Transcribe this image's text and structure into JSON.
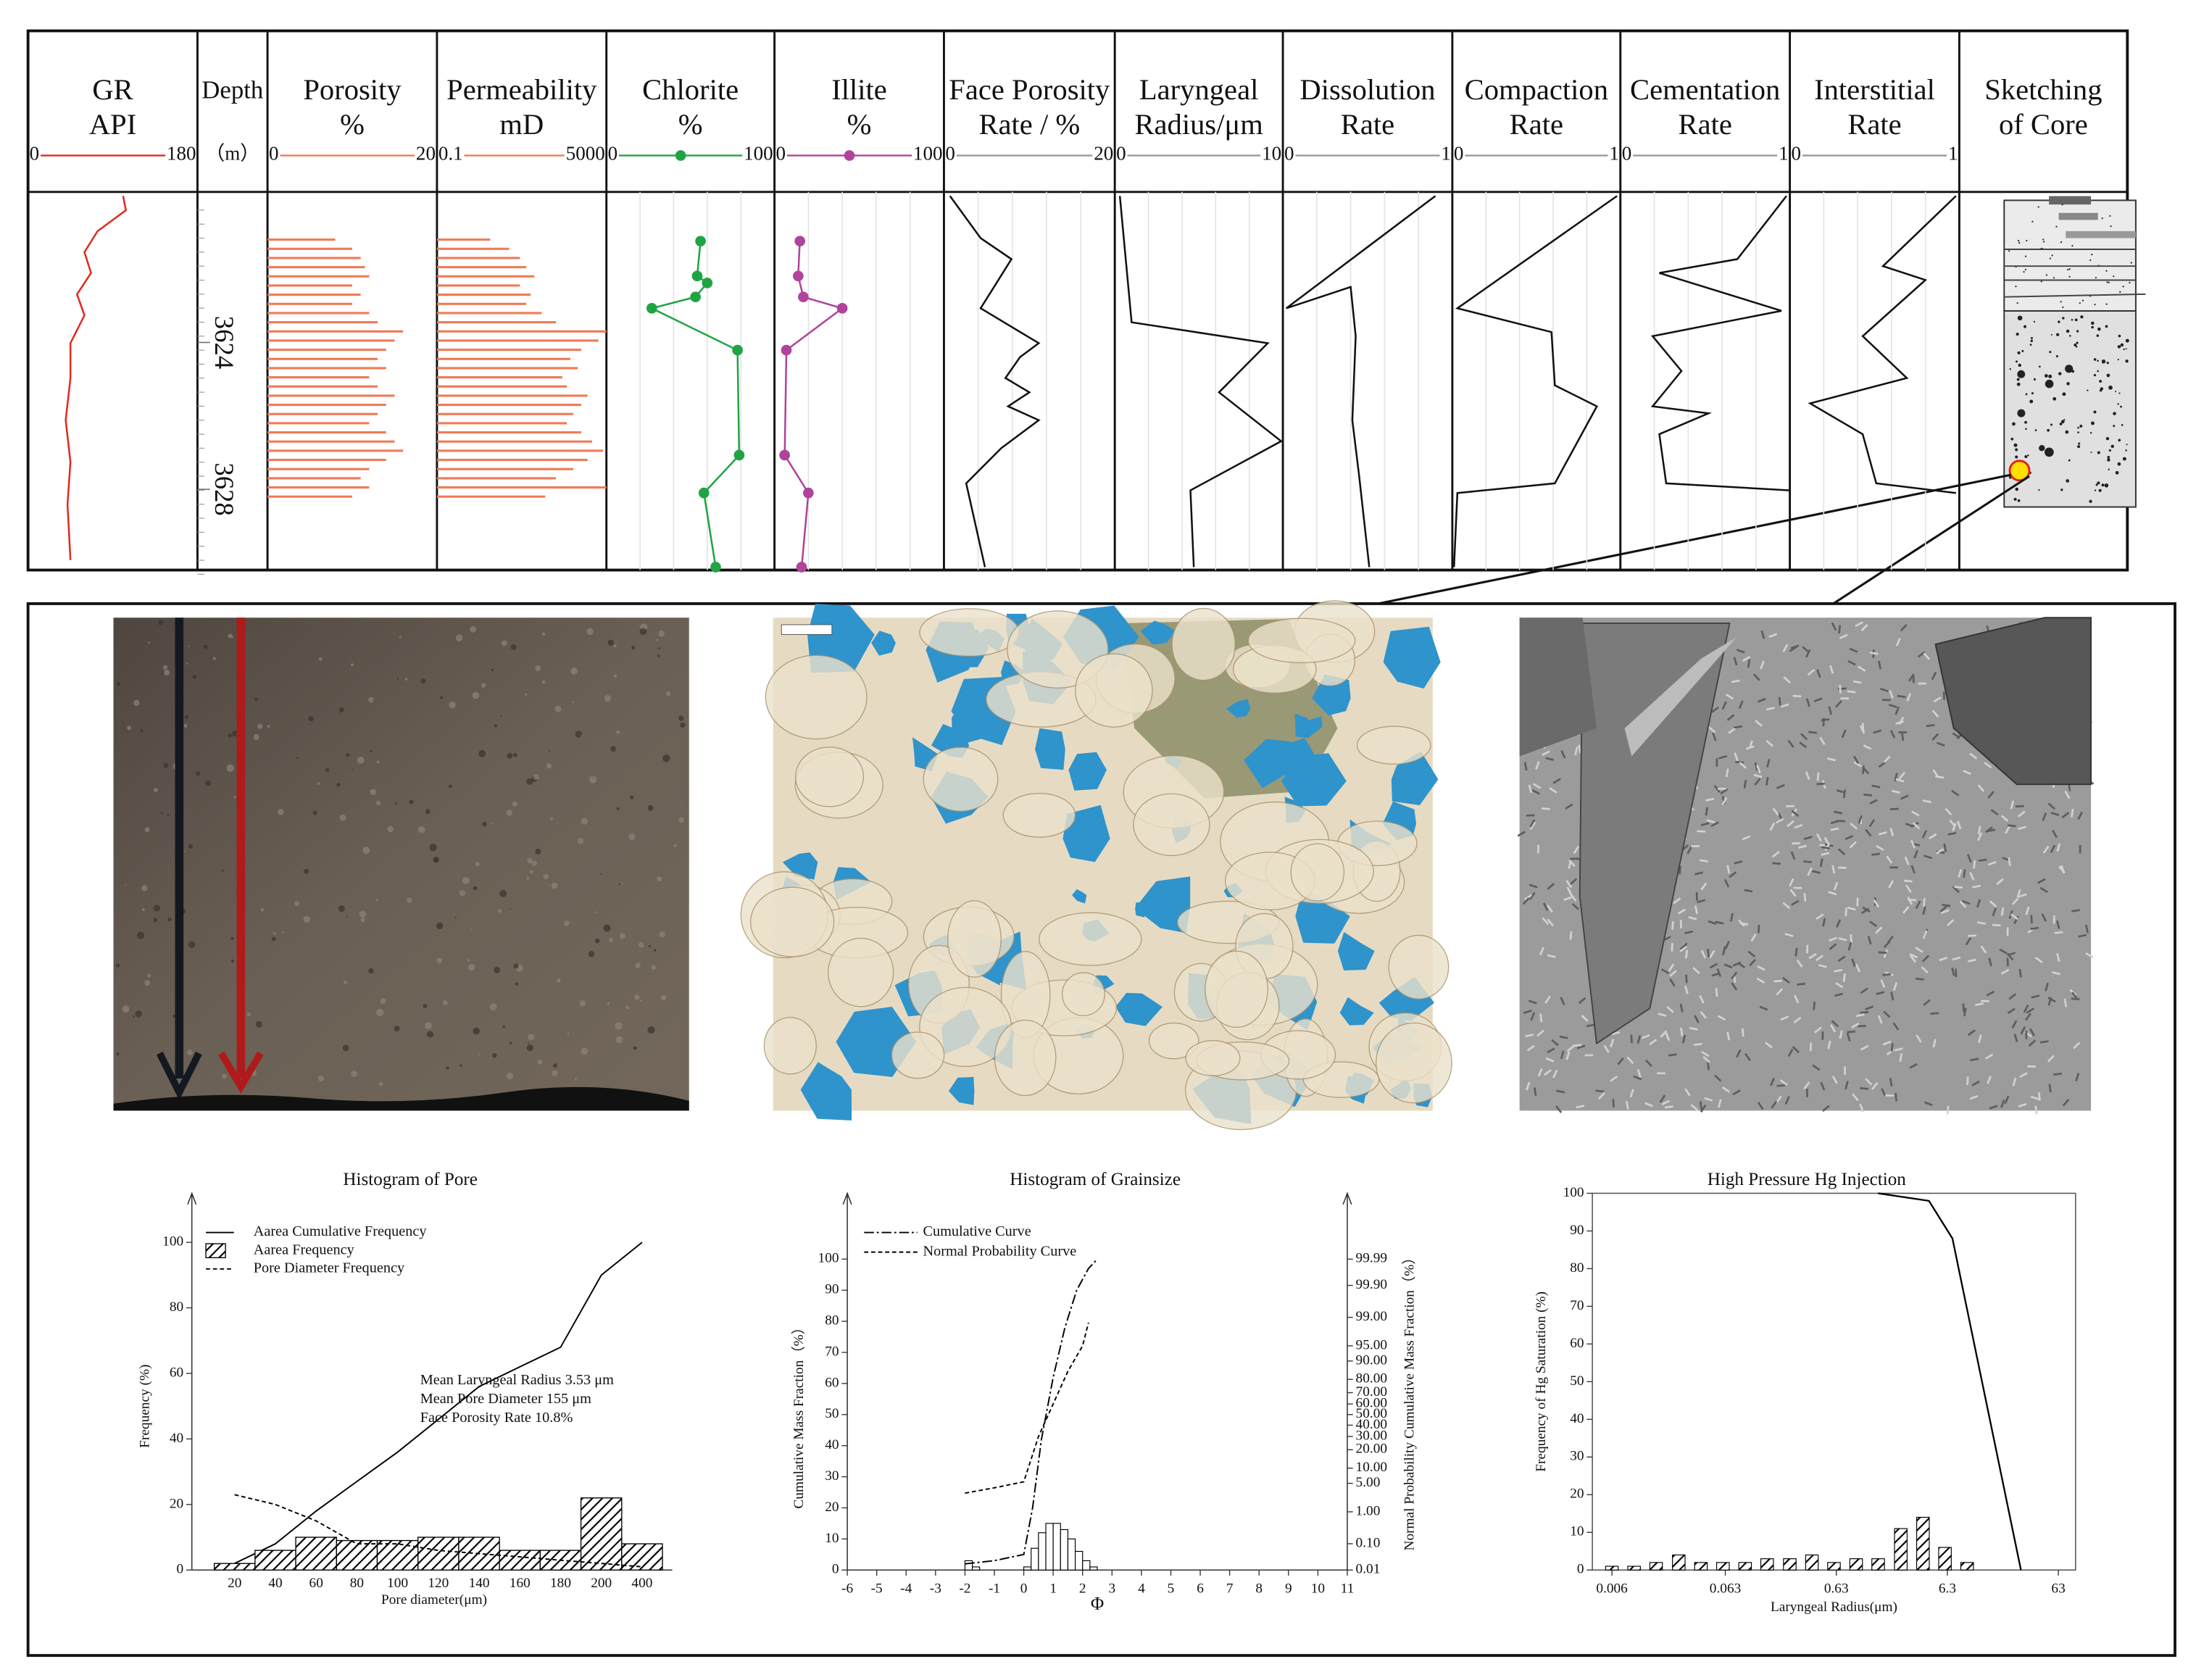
{
  "log_panel": {
    "depth_lim": [
      3619.9,
      3630.2
    ],
    "depth_ticks": [
      3624,
      3628
    ],
    "columns": [
      {
        "title": [
          "GR",
          "API"
        ],
        "scale": [
          0,
          180
        ],
        "color": "#e02a1e",
        "kind": "line",
        "depth": [
          3620.01,
          3620.4,
          3620.97,
          3621.54,
          3622.11,
          3622.69,
          3623.26,
          3624.02,
          3624.97,
          3626.12,
          3627.26,
          3628.41,
          3629.93
        ],
        "values": [
          101,
          104,
          74,
          60,
          67,
          52,
          60,
          45,
          45,
          40,
          45,
          42,
          45
        ]
      },
      {
        "title": [
          "Depth"
        ],
        "unit": "（m）"
      },
      {
        "title": [
          "Porosity",
          "%"
        ],
        "scale": [
          0,
          20
        ],
        "color": "#f07a55",
        "kind": "bars",
        "depth": [
          3621.2,
          3621.45,
          3621.7,
          3621.95,
          3622.2,
          3622.45,
          3622.7,
          3622.95,
          3623.2,
          3623.45,
          3623.7,
          3623.95,
          3624.2,
          3624.45,
          3624.7,
          3624.95,
          3625.2,
          3625.45,
          3625.7,
          3625.95,
          3626.2,
          3626.45,
          3626.7,
          3626.95,
          3627.2,
          3627.45,
          3627.7,
          3627.95,
          3628.2
        ],
        "values": [
          8,
          10,
          11,
          11.5,
          12,
          10,
          11,
          10,
          12,
          13,
          16,
          15,
          14,
          13,
          14,
          12,
          13,
          15,
          14,
          13,
          12,
          14,
          15,
          16,
          14,
          12,
          11,
          12,
          10
        ]
      },
      {
        "title": [
          "Permeability",
          "mD"
        ],
        "scale": [
          0.1,
          5000
        ],
        "log_scale": true,
        "color": "#f07a55",
        "kind": "bars",
        "depth": [
          3621.2,
          3621.45,
          3621.7,
          3621.95,
          3622.2,
          3622.45,
          3622.7,
          3622.95,
          3623.2,
          3623.45,
          3623.7,
          3623.95,
          3624.2,
          3624.45,
          3624.7,
          3624.95,
          3625.2,
          3625.45,
          3625.7,
          3625.95,
          3626.2,
          3626.45,
          3626.7,
          3626.95,
          3627.2,
          3627.45,
          3627.7,
          3627.95,
          3628.2
        ],
        "values": [
          3,
          10,
          20,
          30,
          50,
          20,
          40,
          30,
          80,
          200,
          5000,
          3000,
          1000,
          500,
          800,
          300,
          400,
          1500,
          1000,
          600,
          400,
          1000,
          2000,
          4000,
          1500,
          600,
          200,
          5000,
          100
        ]
      },
      {
        "title": [
          "Chlorite",
          "%"
        ],
        "scale": [
          0,
          100
        ],
        "color": "#1fa444",
        "kind": "line",
        "marker": true,
        "depth": [
          3621.24,
          3622.19,
          3622.38,
          3622.76,
          3623.07,
          3624.21,
          3627.07,
          3628.1,
          3630.12
        ],
        "values": [
          56,
          54,
          60,
          53,
          27,
          78,
          79,
          58,
          65
        ]
      },
      {
        "title": [
          "Illite",
          "%"
        ],
        "scale": [
          0,
          100
        ],
        "color": "#b0439c",
        "kind": "line",
        "marker": true,
        "depth": [
          3621.24,
          3622.19,
          3622.76,
          3623.07,
          3624.21,
          3627.07,
          3628.1,
          3630.12
        ],
        "values": [
          15,
          14,
          17,
          40,
          7,
          6,
          20,
          16
        ]
      },
      {
        "title": [
          "Face Porosity",
          "Rate / %"
        ],
        "scale": [
          0,
          20
        ],
        "color": "#111111",
        "kind": "line",
        "depth": [
          3620.01,
          3621.16,
          3621.73,
          3623.07,
          3624.02,
          3624.4,
          3624.97,
          3625.36,
          3625.74,
          3626.12,
          3626.88,
          3627.84,
          3630.12
        ],
        "values": [
          0.7,
          4.3,
          7.9,
          4.3,
          11.1,
          8.9,
          7.2,
          10,
          7.5,
          11.1,
          6.7,
          2.6,
          4.8
        ]
      },
      {
        "title": [
          "Laryngeal",
          "Radius/μm"
        ],
        "scale": [
          0,
          10
        ],
        "color": "#111111",
        "kind": "line",
        "depth": [
          3620.01,
          3623.45,
          3624.02,
          3625.36,
          3626.69,
          3628.03,
          3630.12
        ],
        "values": [
          0.3,
          1,
          9.1,
          6.2,
          9.9,
          4.5,
          4.7
        ]
      },
      {
        "title": [
          "Dissolution",
          "Rate"
        ],
        "scale": [
          0,
          1
        ],
        "color": "#111111",
        "kind": "line",
        "depth": [
          3620.01,
          3623.07,
          3622.49,
          3623.83,
          3626.12,
          3627.65,
          3630.12
        ],
        "values": [
          0.9,
          0.02,
          0.4,
          0.43,
          0.41,
          0.45,
          0.51
        ]
      },
      {
        "title": [
          "Compaction",
          "Rate"
        ],
        "scale": [
          0,
          1
        ],
        "color": "#111111",
        "kind": "line",
        "depth": [
          3620.01,
          3623.07,
          3623.72,
          3625.17,
          3625.74,
          3627.84,
          3628.1,
          3630.12
        ],
        "values": [
          0.98,
          0.03,
          0.59,
          0.61,
          0.86,
          0.61,
          0.03,
          0.01
        ]
      },
      {
        "title": [
          "Cementation",
          "Rate"
        ],
        "scale": [
          0,
          1
        ],
        "color": "#111111",
        "kind": "line",
        "depth": [
          3620.01,
          3621.73,
          3622.11,
          3623.14,
          3623.83,
          3624.78,
          3625.74,
          3625.93,
          3626.5,
          3627.84,
          3628.03
        ],
        "values": [
          0.98,
          0.69,
          0.23,
          0.95,
          0.19,
          0.36,
          0.19,
          0.52,
          0.23,
          0.27,
          1
        ]
      },
      {
        "title": [
          "Interstitial",
          "Rate"
        ],
        "scale": [
          0,
          1
        ],
        "color": "#111111",
        "kind": "line",
        "depth": [
          3620.01,
          3621.92,
          3622.3,
          3623.83,
          3624.97,
          3625.66,
          3626.5,
          3627.84,
          3628.1
        ],
        "values": [
          0.98,
          0.55,
          0.8,
          0.43,
          0.69,
          0.12,
          0.43,
          0.51,
          0.98
        ]
      },
      {
        "title": [
          "Sketching",
          "of Core"
        ]
      }
    ]
  },
  "chart_data": [
    {
      "type": "bar",
      "title": "Histogram of Pore",
      "categories": [
        "20",
        "40",
        "60",
        "80",
        "100",
        "120",
        "140",
        "160",
        "180",
        "200",
        "400"
      ],
      "ylim": [
        0,
        100
      ],
      "yticks": [
        0,
        20,
        40,
        60,
        80,
        100
      ],
      "y_label": "Frequency (%)",
      "x_label": "Pore diameter(μm)",
      "legend": "upper left",
      "series": [
        {
          "name": "Aarea Cumulative Frequency",
          "kind": "line",
          "dash": "solid",
          "color": "#000000",
          "values": [
            2,
            8,
            18,
            27,
            36,
            46,
            56,
            62,
            68,
            90,
            100
          ]
        },
        {
          "name": "Aarea  Frequency",
          "kind": "bar",
          "color": "#000000",
          "values": [
            2,
            6,
            10,
            9,
            9,
            10,
            10,
            6,
            6,
            22,
            8
          ]
        },
        {
          "name": "Pore Diameter Frequency",
          "kind": "line",
          "dash": "dashed",
          "color": "#000000",
          "values": [
            23,
            20,
            15,
            8,
            8,
            6,
            5,
            4,
            3,
            2,
            1
          ]
        }
      ],
      "annotations": [
        "Mean Laryngeal Radius 3.53 μm",
        "Mean Pore Diameter 155 μm",
        "Face Porosity Rate 10.8%"
      ]
    },
    {
      "type": "histogram",
      "title": "Histogram of Grainsize",
      "bins": [
        -2,
        -1.75,
        -1.5,
        -1.25,
        -1,
        -0.75,
        -0.5,
        -0.25,
        0,
        0.25,
        0.5,
        0.75,
        1,
        1.25,
        1.5,
        1.75,
        2,
        2.25,
        2.5
      ],
      "counts": [
        3,
        1,
        0,
        0,
        0,
        0,
        0,
        0,
        1,
        7,
        12,
        15,
        15,
        13,
        10,
        6,
        3,
        1
      ],
      "xlim": [
        -6,
        11
      ],
      "xticks": [
        -6,
        -5,
        -4,
        -3,
        -2,
        -1,
        0,
        1,
        2,
        3,
        4,
        5,
        6,
        7,
        8,
        9,
        10,
        11
      ],
      "ylim": [
        0,
        100
      ],
      "yticks": [
        0,
        10,
        20,
        30,
        40,
        50,
        60,
        70,
        80,
        90,
        100
      ],
      "y2lim": [
        0.01,
        99.99
      ],
      "y2_scale": "probability",
      "y2ticks": [
        {
          "value": 0.01,
          "label": "0.01"
        },
        {
          "value": 0.1,
          "label": "0.10"
        },
        {
          "value": 1,
          "label": "1.00"
        },
        {
          "value": 5,
          "label": "5.00"
        },
        {
          "value": 10,
          "label": "10.00"
        },
        {
          "value": 20,
          "label": "20.00"
        },
        {
          "value": 30,
          "label": "30.00"
        },
        {
          "value": 40,
          "label": "40.00"
        },
        {
          "value": 50,
          "label": "50.00"
        },
        {
          "value": 60,
          "label": "60.00"
        },
        {
          "value": 70,
          "label": "70.00"
        },
        {
          "value": 80,
          "label": "80.00"
        },
        {
          "value": 90,
          "label": "90.00"
        },
        {
          "value": 95,
          "label": "95.00"
        },
        {
          "value": 99,
          "label": "99.00"
        },
        {
          "value": 99.9,
          "label": "99.90"
        },
        {
          "value": 99.99,
          "label": "99.99"
        }
      ],
      "x_label": "Φ",
      "y_label": "Cumulative Mass Fraction（%）",
      "y2_label": "Normal Probability Cumulative Mass Fraction（%）",
      "legend": "upper left",
      "series": [
        {
          "name": "Cumulative Curve",
          "dash": "dashdot",
          "color": "#000000",
          "x": [
            -2,
            -1,
            0,
            0.3,
            0.6,
            1,
            1.4,
            1.8,
            2.2,
            2.5
          ],
          "values": [
            2,
            3,
            5,
            20,
            42,
            62,
            78,
            90,
            97,
            100
          ]
        },
        {
          "name": "Normal Probability Curve",
          "dash": "dashed",
          "color": "#000000",
          "axis": "y2",
          "x": [
            -2,
            -1,
            0,
            0.5,
            1,
            1.5,
            2,
            2.2
          ],
          "values": [
            3,
            4,
            5.4,
            30,
            60,
            85,
            95,
            98.6
          ]
        }
      ]
    },
    {
      "type": "bar",
      "title": "High Pressure Hg Injection",
      "x": [
        0.006,
        0.0095,
        0.015,
        0.024,
        0.038,
        0.06,
        0.095,
        0.15,
        0.24,
        0.38,
        0.6,
        0.95,
        1.5,
        2.4,
        3.8,
        6,
        9.5
      ],
      "values": [
        1,
        1,
        2,
        4,
        2,
        2,
        2,
        3,
        3,
        4,
        2,
        3,
        3,
        11,
        14,
        6,
        2
      ],
      "xscale": "log",
      "xlim": [
        0.004,
        90
      ],
      "xticks": [
        0.006,
        0.063,
        0.63,
        6.3,
        63
      ],
      "ylim": [
        0,
        100
      ],
      "yticks": [
        0,
        10,
        20,
        30,
        40,
        50,
        60,
        70,
        80,
        90,
        100
      ],
      "x_label": "Laryngeal Radius(μm)",
      "y_label": "Frequency  of Hg Saturation (%)",
      "line": {
        "x": [
          1.5,
          4.3,
          7,
          29
        ],
        "values": [
          100,
          98,
          88,
          0
        ],
        "color": "#000000"
      }
    }
  ]
}
